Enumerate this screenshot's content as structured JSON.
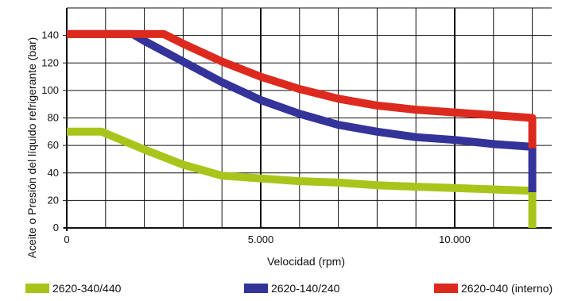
{
  "chart_data": {
    "type": "line",
    "xlabel": "Velocidad (rpm)",
    "ylabel": "Aceite o Presión del líquido refrigerante (bar)",
    "xlim": [
      0,
      12500
    ],
    "ylim": [
      0,
      160
    ],
    "grid": true,
    "legend_position": "bottom",
    "x_ticks": [
      {
        "value": 0,
        "label": "0"
      },
      {
        "value": 5000,
        "label": "5.000"
      },
      {
        "value": 10000,
        "label": "10.000"
      }
    ],
    "y_ticks": [
      {
        "value": 0,
        "label": "0"
      },
      {
        "value": 20,
        "label": "20"
      },
      {
        "value": 40,
        "label": "40"
      },
      {
        "value": 60,
        "label": "60"
      },
      {
        "value": 80,
        "label": "80"
      },
      {
        "value": 100,
        "label": "100"
      },
      {
        "value": 120,
        "label": "120"
      },
      {
        "value": 140,
        "label": "140"
      }
    ],
    "series": [
      {
        "name": "2620-340/440",
        "color": "#a9c51b",
        "x": [
          0,
          900,
          2000,
          3000,
          4000,
          5000,
          6000,
          7000,
          8000,
          9000,
          10000,
          11000,
          12000,
          12000
        ],
        "y": [
          70,
          70,
          57,
          46,
          38,
          36,
          34,
          33,
          31,
          30,
          29,
          28,
          27,
          0
        ]
      },
      {
        "name": "2620-140/240",
        "color": "#333399",
        "x": [
          0,
          1700,
          2000,
          3000,
          4000,
          5000,
          6000,
          7000,
          8000,
          9000,
          10000,
          11000,
          12000,
          12000
        ],
        "y": [
          141,
          141,
          136,
          121,
          106,
          93,
          83,
          75,
          70,
          66,
          64,
          61,
          59,
          26
        ]
      },
      {
        "name": "2620-040 (interno)",
        "color": "#dd2a1f",
        "x": [
          0,
          2500,
          3000,
          4000,
          5000,
          6000,
          7000,
          8000,
          9000,
          10000,
          11000,
          12000,
          12000
        ],
        "y": [
          141,
          141,
          134,
          121,
          110,
          101,
          94,
          89,
          86,
          84,
          82,
          80,
          58
        ]
      }
    ]
  }
}
